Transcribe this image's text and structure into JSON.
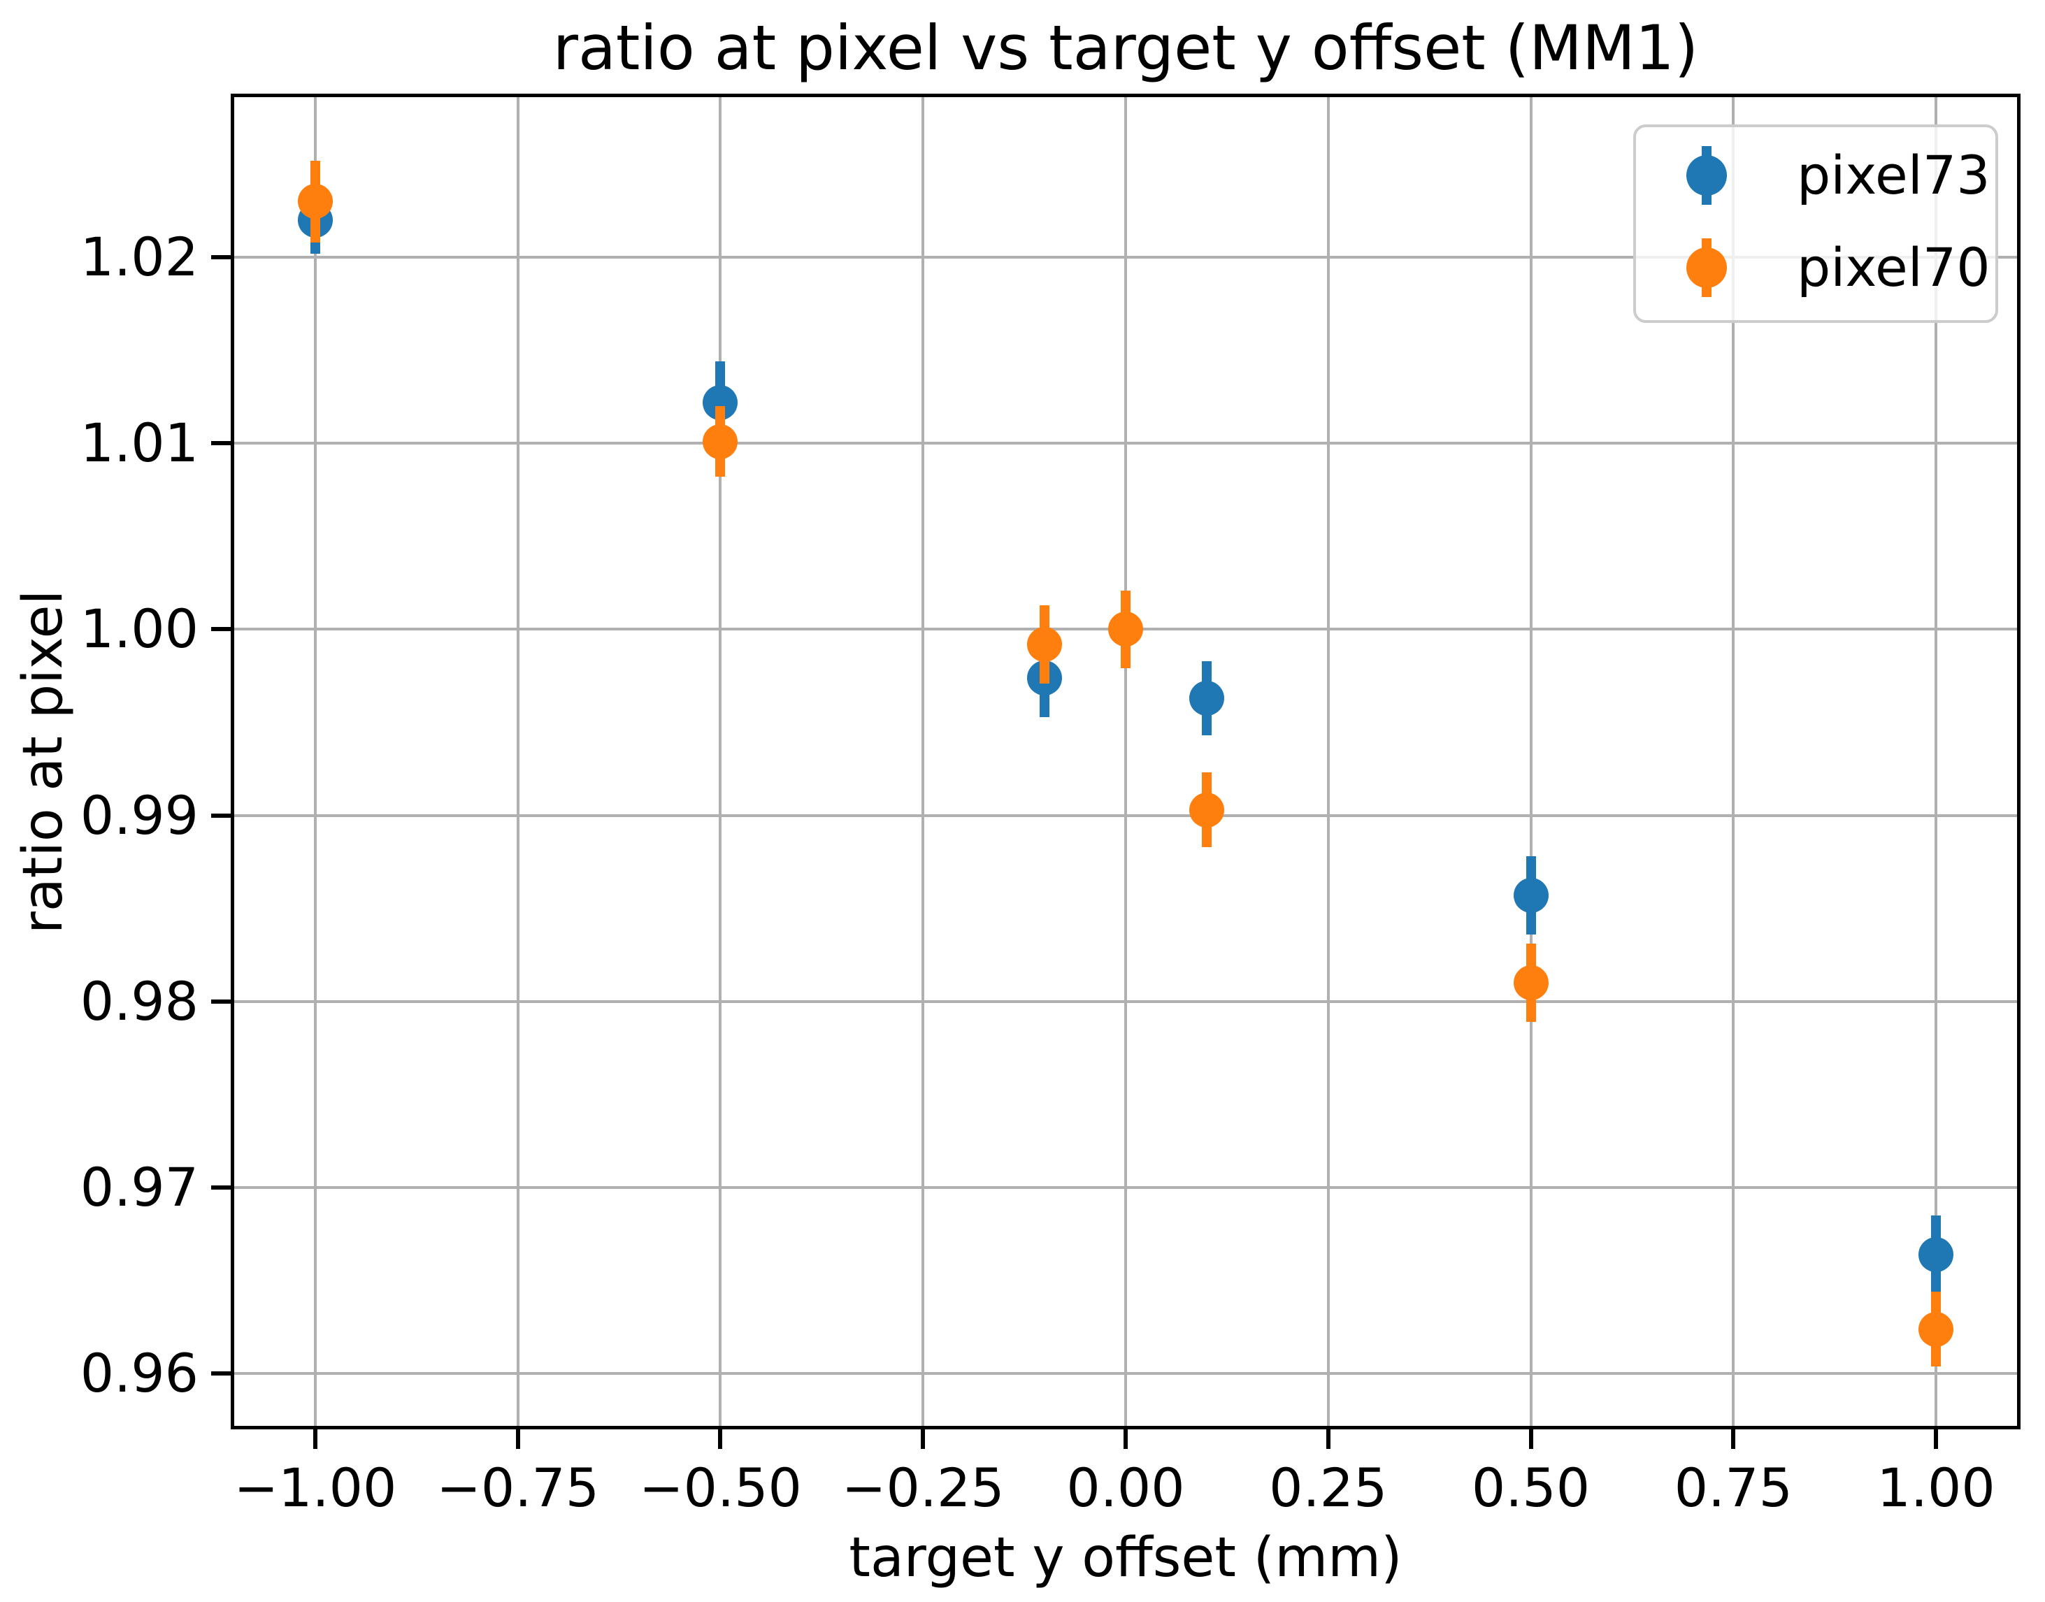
{
  "figure": {
    "background": "#ffffff"
  },
  "chart_data": {
    "type": "scatter",
    "title": "ratio at pixel vs target y offset (MM1)",
    "xlabel": "target y offset (mm)",
    "ylabel": "ratio at pixel",
    "xlim": [
      -1.1,
      1.1
    ],
    "ylim": [
      0.9572,
      1.0286
    ],
    "grid": true,
    "grid_color": "#b0b0b0",
    "legend_position": "upper right",
    "xticks": [
      {
        "value": -1.0,
        "label": "−1.00"
      },
      {
        "value": -0.75,
        "label": "−0.75"
      },
      {
        "value": -0.5,
        "label": "−0.50"
      },
      {
        "value": -0.25,
        "label": "−0.25"
      },
      {
        "value": 0.0,
        "label": "0.00"
      },
      {
        "value": 0.25,
        "label": "0.25"
      },
      {
        "value": 0.5,
        "label": "0.50"
      },
      {
        "value": 0.75,
        "label": "0.75"
      },
      {
        "value": 1.0,
        "label": "1.00"
      }
    ],
    "yticks": [
      {
        "value": 0.96,
        "label": "0.96"
      },
      {
        "value": 0.97,
        "label": "0.97"
      },
      {
        "value": 0.98,
        "label": "0.98"
      },
      {
        "value": 0.99,
        "label": "0.99"
      },
      {
        "value": 1.0,
        "label": "1.00"
      },
      {
        "value": 1.01,
        "label": "1.01"
      },
      {
        "value": 1.02,
        "label": "1.02"
      }
    ],
    "series": [
      {
        "name": "pixel73",
        "color": "#1f77b4",
        "marker": "circle",
        "points": [
          {
            "x": -1.0,
            "y": 1.022,
            "yerr": 0.0018
          },
          {
            "x": -0.5,
            "y": 1.0122,
            "yerr": 0.0022
          },
          {
            "x": -0.1,
            "y": 0.9974,
            "yerr": 0.0021
          },
          {
            "x": 0.1,
            "y": 0.9963,
            "yerr": 0.002
          },
          {
            "x": 0.5,
            "y": 0.9857,
            "yerr": 0.0021
          },
          {
            "x": 1.0,
            "y": 0.9664,
            "yerr": 0.0021
          }
        ]
      },
      {
        "name": "pixel70",
        "color": "#ff7f0e",
        "marker": "circle",
        "points": [
          {
            "x": -1.0,
            "y": 1.023,
            "yerr": 0.0022
          },
          {
            "x": -0.5,
            "y": 1.0101,
            "yerr": 0.0019
          },
          {
            "x": -0.1,
            "y": 0.9992,
            "yerr": 0.0021
          },
          {
            "x": 0.0,
            "y": 1.0,
            "yerr": 0.0021
          },
          {
            "x": 0.1,
            "y": 0.9903,
            "yerr": 0.002
          },
          {
            "x": 0.5,
            "y": 0.981,
            "yerr": 0.0021
          },
          {
            "x": 1.0,
            "y": 0.9624,
            "yerr": 0.002
          }
        ]
      }
    ]
  }
}
